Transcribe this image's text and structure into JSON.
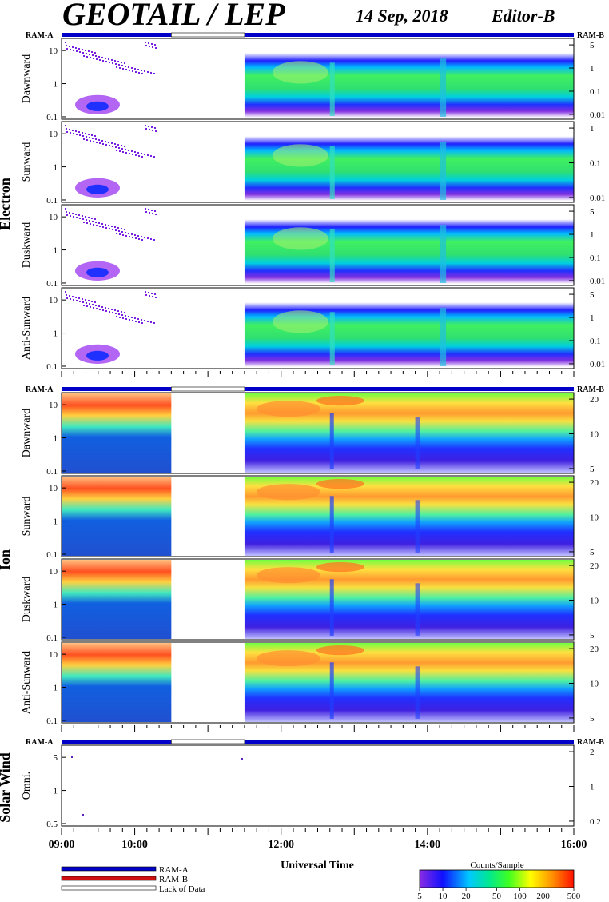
{
  "header": {
    "title": "GEOTAIL / LEP",
    "date": "14 Sep, 2018",
    "editor": "Editor-B"
  },
  "ram_labels": {
    "left": "RAM-A",
    "right": "RAM-B"
  },
  "groups": {
    "electron": "Electron",
    "ion": "Ion",
    "solar_wind": "Solar Wind"
  },
  "chart_data": {
    "type": "heatmap",
    "x_axis": {
      "label": "Universal Time",
      "range": [
        "09:00",
        "16:00"
      ],
      "ticks": [
        "09:00",
        "10:00",
        "12:00",
        "14:00",
        "16:00"
      ]
    },
    "data_gaps": [
      {
        "start": "10:30",
        "end": "11:30"
      }
    ],
    "panels": [
      {
        "group": "Electron",
        "name": "Dawnward",
        "yticks": [
          "10",
          "1",
          "0.1"
        ],
        "rticks": [
          "5",
          "1",
          "0.1",
          "0.01"
        ]
      },
      {
        "group": "Electron",
        "name": "Sunward",
        "yticks": [
          "10",
          "1",
          "0.1"
        ],
        "rticks": [
          "1",
          "0.1",
          "0.01"
        ]
      },
      {
        "group": "Electron",
        "name": "Duskward",
        "yticks": [
          "10",
          "1",
          "0.1"
        ],
        "rticks": [
          "5",
          "1",
          "0.1",
          "0.01"
        ]
      },
      {
        "group": "Electron",
        "name": "Anti-Sunward",
        "yticks": [
          "10",
          "1",
          "0.1"
        ],
        "rticks": [
          "5",
          "1",
          "0.1",
          "0.01"
        ]
      },
      {
        "group": "Ion",
        "name": "Dawnward",
        "yticks": [
          "10",
          "1",
          "0.1"
        ],
        "rticks": [
          "20",
          "10",
          "5"
        ]
      },
      {
        "group": "Ion",
        "name": "Sunward",
        "yticks": [
          "10",
          "1",
          "0.1"
        ],
        "rticks": [
          "20",
          "10",
          "5"
        ]
      },
      {
        "group": "Ion",
        "name": "Duskward",
        "yticks": [
          "10",
          "1",
          "0.1"
        ],
        "rticks": [
          "20",
          "10",
          "5"
        ]
      },
      {
        "group": "Ion",
        "name": "Anti-Sunward",
        "yticks": [
          "10",
          "1",
          "0.1"
        ],
        "rticks": [
          "20",
          "10",
          "5"
        ]
      },
      {
        "group": "Solar Wind",
        "name": "Omni.",
        "yticks": [
          "5",
          "1",
          "0.5"
        ],
        "rticks": [
          "2",
          "1",
          "0.2"
        ]
      }
    ],
    "colorbar": {
      "label": "Counts/Sample",
      "ticks": [
        "5",
        "10",
        "20",
        "50",
        "100",
        "200",
        "500"
      ],
      "scale": "log"
    }
  },
  "legend": [
    {
      "label": "RAM-A",
      "color": "#0000c8"
    },
    {
      "label": "RAM-B",
      "color": "#d01010"
    },
    {
      "label": "Lack of Data",
      "color": "#ffffff"
    }
  ]
}
